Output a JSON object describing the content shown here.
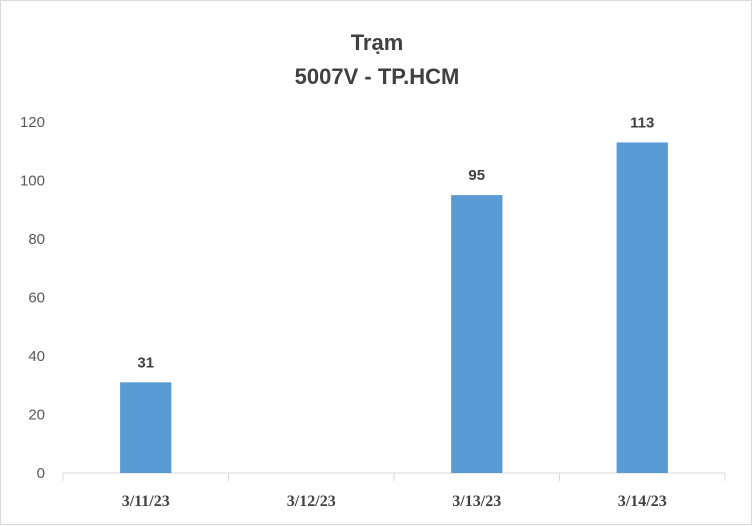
{
  "chart_data": {
    "type": "bar",
    "title_line1": "Trạm",
    "title_line2": "5007V - TP.HCM",
    "categories": [
      "3/11/23",
      "3/12/23",
      "3/13/23",
      "3/14/23"
    ],
    "values": [
      31,
      null,
      95,
      113
    ],
    "data_labels": [
      "31",
      "",
      "95",
      "113"
    ],
    "ylim": [
      0,
      120
    ],
    "yticks": [
      0,
      20,
      40,
      60,
      80,
      100,
      120
    ],
    "grid": false,
    "bar_color": "#5b9bd5",
    "axis_color": "#d9d9d9"
  }
}
